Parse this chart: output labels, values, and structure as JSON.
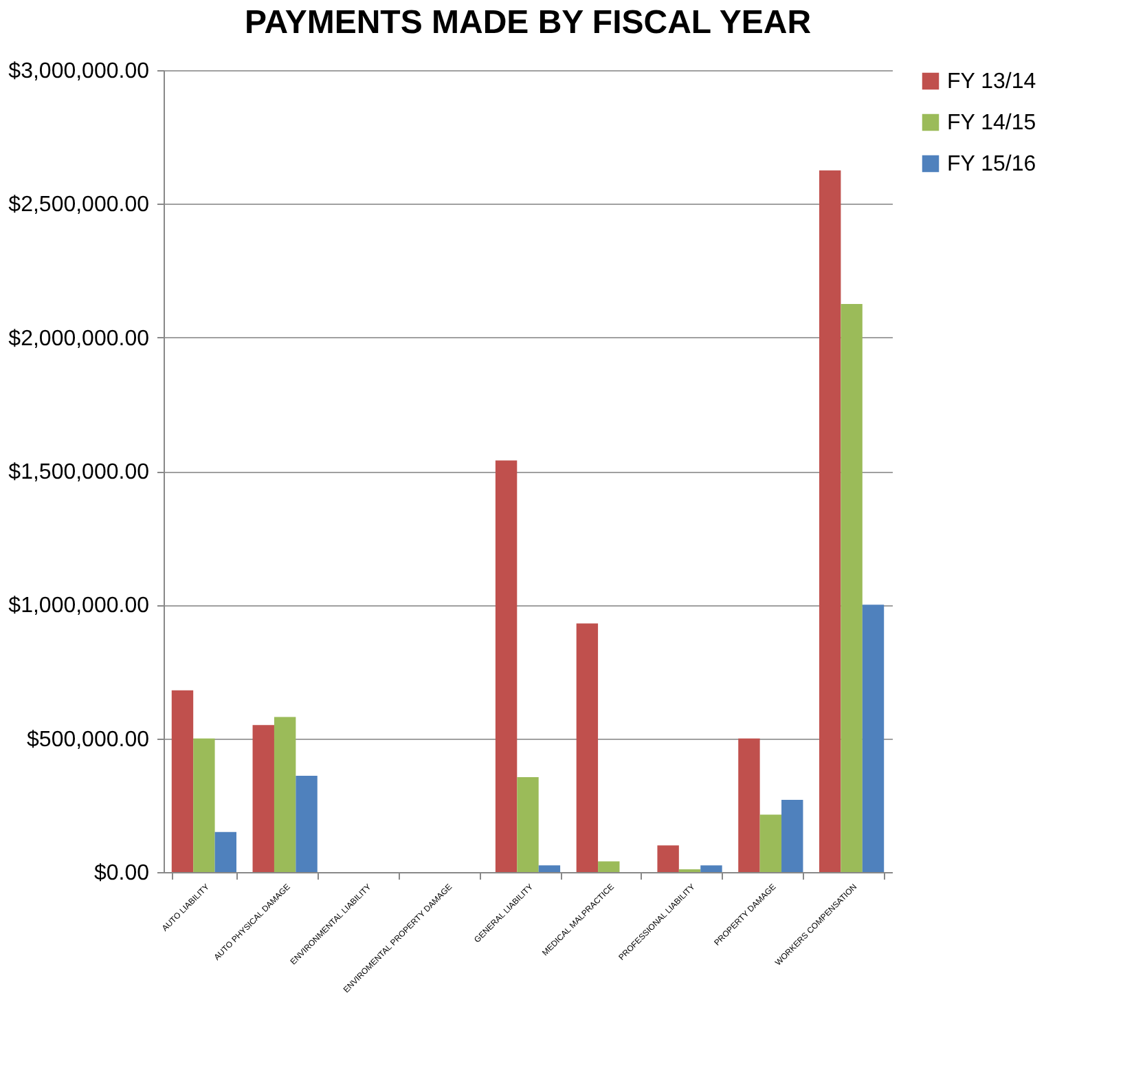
{
  "chart_data": {
    "type": "bar",
    "title": "PAYMENTS MADE BY FISCAL YEAR",
    "categories": [
      "AUTO LIABILITY",
      "AUTO PHYSICAL DAMAGE",
      "ENVIRONMENTAL LIABILITY",
      "ENVIROMENTAL PROPERTY DAMAGE",
      "GENERAL LIABILITY",
      "MEDICAL MALPRACTICE",
      "PROFESSIONAL LIABILITY",
      "PROPERTY DAMAGE",
      "WORKERS COMPENSATION"
    ],
    "series": [
      {
        "name": "FY 13/14",
        "color": "#c0504d",
        "values": [
          680000,
          550000,
          0,
          0,
          1540000,
          930000,
          100000,
          500000,
          2625000
        ]
      },
      {
        "name": "FY 14/15",
        "color": "#9bbb59",
        "values": [
          500000,
          580000,
          0,
          0,
          355000,
          40000,
          10000,
          215000,
          2125000
        ]
      },
      {
        "name": "FY 15/16",
        "color": "#4f81bd",
        "values": [
          150000,
          360000,
          0,
          0,
          25000,
          0,
          25000,
          270000,
          1000000
        ]
      }
    ],
    "ylim": [
      0,
      3000000
    ],
    "yticks": [
      {
        "value": 0,
        "label": "$0.00"
      },
      {
        "value": 500000,
        "label": "$500,000.00"
      },
      {
        "value": 1000000,
        "label": "$1,000,000.00"
      },
      {
        "value": 1500000,
        "label": "$1,500,000.00"
      },
      {
        "value": 2000000,
        "label": "$2,000,000.00"
      },
      {
        "value": 2500000,
        "label": "$2,500,000.00"
      },
      {
        "value": 3000000,
        "label": "$3,000,000.00"
      }
    ],
    "grid": "y",
    "legend": "right"
  }
}
